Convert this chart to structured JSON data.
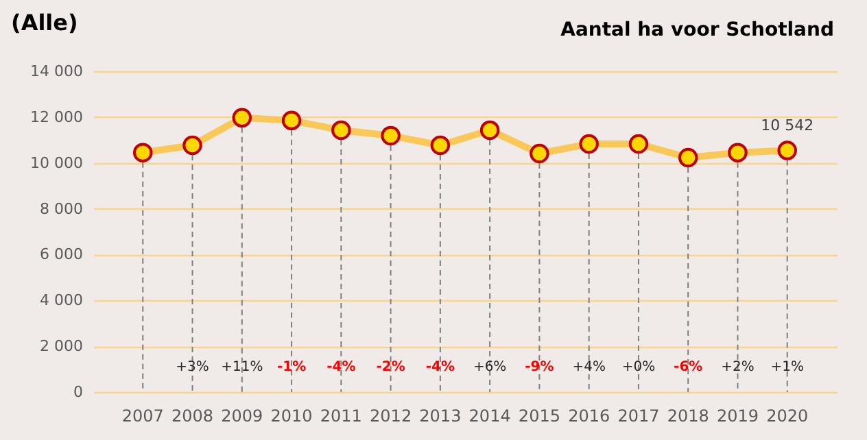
{
  "chart_data": {
    "type": "line",
    "title": "Aantal ha voor Schotland",
    "categories": [
      "2007",
      "2008",
      "2009",
      "2010",
      "2011",
      "2012",
      "2013",
      "2014",
      "2015",
      "2016",
      "2017",
      "2018",
      "2019",
      "2020"
    ],
    "series": [
      {
        "color": "#fac858",
        "values": [
          10450,
          10770,
          11970,
          11850,
          11430,
          11190,
          10770,
          11430,
          10410,
          10830,
          10830,
          10230,
          10450,
          10542
        ],
        "value_labels": [
          null,
          null,
          null,
          null,
          null,
          null,
          null,
          null,
          null,
          null,
          null,
          null,
          null,
          "10 542"
        ]
      }
    ],
    "ylim": [
      0,
      14000
    ],
    "yticks": [
      0,
      {
        "value": 2000,
        "label": "2 000"
      },
      {
        "value": 4000,
        "label": "4 000"
      },
      {
        "value": 6000,
        "label": "6 000"
      },
      {
        "value": 8000,
        "label": "8 000"
      },
      {
        "value": 10000,
        "label": "10 000"
      },
      {
        "value": 12000,
        "label": "12 000"
      },
      {
        "value": 14000,
        "label": "14 000"
      }
    ],
    "grid": true,
    "marker": "circle",
    "line_style": "solid",
    "annotations": [
      "(Alle)",
      "+3%",
      "+11%",
      "-1%",
      "-4%",
      "-2%",
      "-4%",
      "+6%",
      "-9%",
      "+4%",
      "+0%",
      "-6%",
      "+2%",
      "+1%"
    ]
  }
}
